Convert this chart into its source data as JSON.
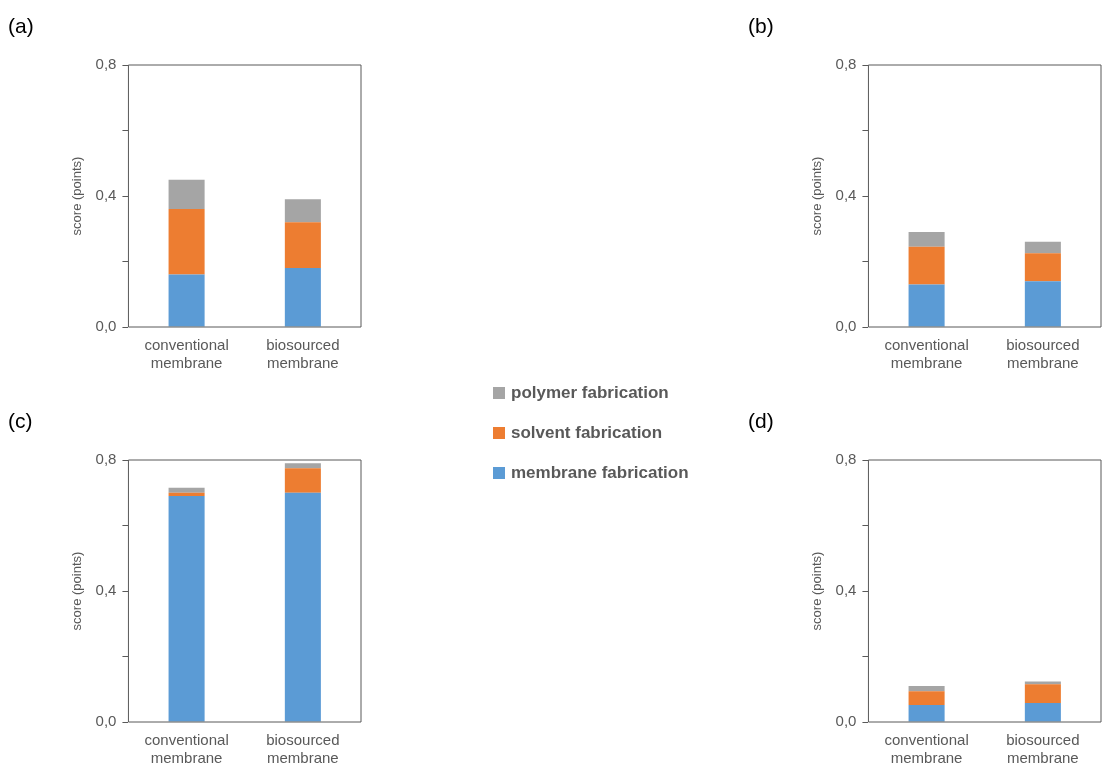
{
  "chart_data": [
    {
      "type": "bar",
      "title": "(a)",
      "ylabel": "score (points)",
      "categories": [
        "conventional membrane",
        "biosourced membrane"
      ],
      "stacked": true,
      "ylim": [
        0,
        0.8
      ],
      "yticks": [
        {
          "value": 0,
          "label": "0,0"
        },
        {
          "value": 0.2,
          "label": null
        },
        {
          "value": 0.4,
          "label": "0,4"
        },
        {
          "value": 0.6,
          "label": null
        },
        {
          "value": 0.8,
          "label": "0,8"
        }
      ],
      "grid": false,
      "series": [
        {
          "color": "#5b9bd5",
          "values": [
            0.16,
            0.18
          ]
        },
        {
          "color": "#ed7d31",
          "values": [
            0.2,
            0.14
          ]
        },
        {
          "color": "#a5a5a5",
          "values": [
            0.09,
            0.07
          ]
        }
      ]
    },
    {
      "type": "bar",
      "title": "(b)",
      "ylabel": "score (points)",
      "categories": [
        "conventional membrane",
        "biosourced membrane"
      ],
      "stacked": true,
      "ylim": [
        0,
        0.8
      ],
      "yticks": [
        {
          "value": 0,
          "label": "0,0"
        },
        {
          "value": 0.2,
          "label": null
        },
        {
          "value": 0.4,
          "label": "0,4"
        },
        {
          "value": 0.6,
          "label": null
        },
        {
          "value": 0.8,
          "label": "0,8"
        }
      ],
      "grid": false,
      "series": [
        {
          "color": "#5b9bd5",
          "values": [
            0.13,
            0.14
          ]
        },
        {
          "color": "#ed7d31",
          "values": [
            0.115,
            0.085
          ]
        },
        {
          "color": "#a5a5a5",
          "values": [
            0.045,
            0.035
          ]
        }
      ]
    },
    {
      "type": "bar",
      "title": "(c)",
      "ylabel": "score (points)",
      "categories": [
        "conventional membrane",
        "biosourced membrane"
      ],
      "stacked": true,
      "ylim": [
        0,
        0.8
      ],
      "yticks": [
        {
          "value": 0,
          "label": "0,0"
        },
        {
          "value": 0.2,
          "label": null
        },
        {
          "value": 0.4,
          "label": "0,4"
        },
        {
          "value": 0.6,
          "label": null
        },
        {
          "value": 0.8,
          "label": "0,8"
        }
      ],
      "grid": false,
      "legend": "right",
      "series": [
        {
          "name": "membrane fabrication",
          "color": "#5b9bd5",
          "values": [
            0.69,
            0.7
          ]
        },
        {
          "name": "solvent fabrication",
          "color": "#ed7d31",
          "values": [
            0.01,
            0.075
          ]
        },
        {
          "name": "polymer fabrication",
          "color": "#a5a5a5",
          "values": [
            0.015,
            0.015
          ]
        }
      ]
    },
    {
      "type": "bar",
      "title": "(d)",
      "ylabel": "score (points)",
      "categories": [
        "conventional membrane",
        "biosourced membrane"
      ],
      "stacked": true,
      "ylim": [
        0,
        0.8
      ],
      "yticks": [
        {
          "value": 0,
          "label": "0,0"
        },
        {
          "value": 0.2,
          "label": null
        },
        {
          "value": 0.4,
          "label": "0,4"
        },
        {
          "value": 0.6,
          "label": null
        },
        {
          "value": 0.8,
          "label": "0,8"
        }
      ],
      "grid": false,
      "series": [
        {
          "color": "#5b9bd5",
          "values": [
            0.052,
            0.058
          ]
        },
        {
          "color": "#ed7d31",
          "values": [
            0.042,
            0.057
          ]
        },
        {
          "color": "#a5a5a5",
          "values": [
            0.016,
            0.009
          ]
        }
      ]
    }
  ]
}
